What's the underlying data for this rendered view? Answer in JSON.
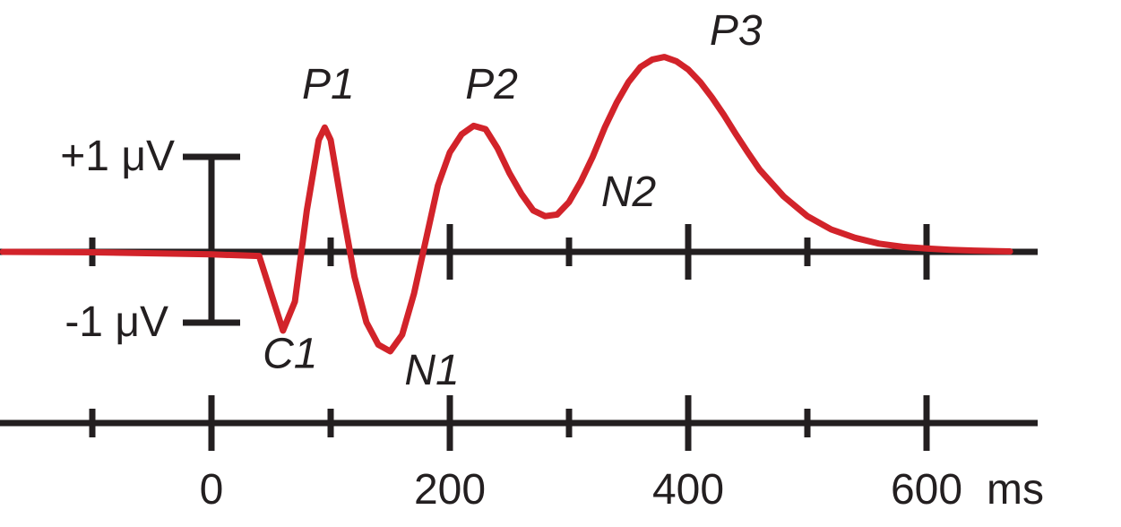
{
  "chart_data": {
    "type": "line",
    "title": "",
    "xlabel": "",
    "ylabel": "",
    "x_unit": "ms",
    "xlim": [
      -175,
      690
    ],
    "ylim": [
      -1.2,
      2.35
    ],
    "x_ticks_major": [
      0,
      200,
      400,
      600
    ],
    "x_ticks_minor": [
      -100,
      100,
      300,
      500
    ],
    "x_tick_labels": [
      "0",
      "200",
      "400",
      "600"
    ],
    "x_unit_label": "ms",
    "scale_bar": {
      "plus_label": "+1 μV",
      "minus_label": "-1 μV",
      "plus_value": 1,
      "minus_value": -1,
      "x": 0
    },
    "colors": {
      "waveform": "#d2232a",
      "axes": "#231f20"
    },
    "series": [
      {
        "x": [
          -175,
          -100,
          0,
          40,
          50,
          60,
          70,
          80,
          90,
          95,
          100,
          110,
          120,
          130,
          140,
          150,
          160,
          170,
          180,
          190,
          200,
          210,
          220,
          230,
          240,
          250,
          260,
          270,
          280,
          290,
          300,
          310,
          320,
          330,
          340,
          350,
          360,
          370,
          380,
          390,
          400,
          410,
          420,
          430,
          440,
          450,
          460,
          480,
          500,
          520,
          540,
          560,
          580,
          600,
          620,
          640,
          660,
          670
        ],
        "y": [
          0,
          -0.005,
          -0.03,
          -0.05,
          -0.5,
          -0.95,
          -0.6,
          0.5,
          1.35,
          1.5,
          1.35,
          0.5,
          -0.3,
          -0.85,
          -1.12,
          -1.2,
          -1.0,
          -0.5,
          0.15,
          0.8,
          1.2,
          1.42,
          1.52,
          1.48,
          1.25,
          0.95,
          0.7,
          0.5,
          0.43,
          0.45,
          0.6,
          0.85,
          1.15,
          1.5,
          1.8,
          2.05,
          2.23,
          2.32,
          2.35,
          2.3,
          2.2,
          2.05,
          1.86,
          1.65,
          1.42,
          1.2,
          0.99,
          0.67,
          0.43,
          0.27,
          0.17,
          0.1,
          0.06,
          0.04,
          0.025,
          0.015,
          0.008,
          0.005
        ]
      }
    ],
    "annotations": [
      {
        "text": "C1",
        "x": 66,
        "y": -1.4
      },
      {
        "text": "P1",
        "x": 98,
        "y": 1.85
      },
      {
        "text": "N1",
        "x": 185,
        "y": -1.6
      },
      {
        "text": "P2",
        "x": 235,
        "y": 1.85
      },
      {
        "text": "N2",
        "x": 350,
        "y": 0.55
      },
      {
        "text": "P3",
        "x": 440,
        "y": 2.5
      }
    ]
  }
}
